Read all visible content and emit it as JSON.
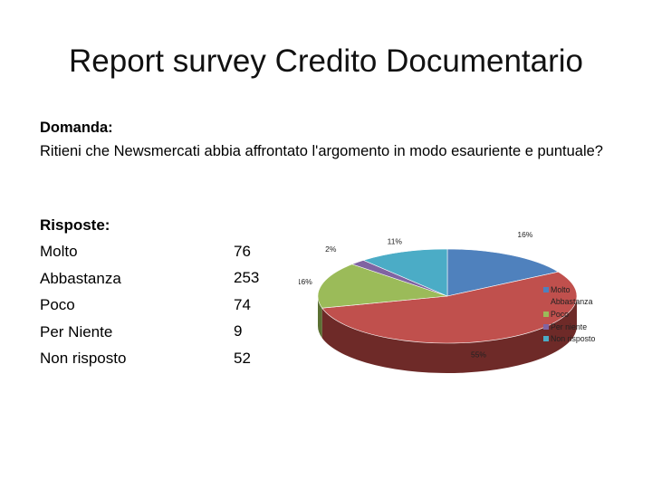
{
  "title": "Report survey Credito Documentario",
  "question": {
    "label": "Domanda:",
    "text": "Ritieni che Newsmercati abbia affrontato l'argomento in modo esauriente e puntuale?"
  },
  "answers": {
    "heading": "Risposte:",
    "items": [
      {
        "label": "Molto",
        "value": "76"
      },
      {
        "label": "Abbastanza",
        "value": "253"
      },
      {
        "label": "Poco",
        "value": "74"
      },
      {
        "label": "Per Niente",
        "value": "9"
      },
      {
        "label": "Non risposto",
        "value": "52"
      }
    ]
  },
  "chart_data": {
    "type": "pie",
    "style": "3d",
    "categories": [
      "Molto",
      "Abbastanza",
      "Poco",
      "Per niente",
      "Non risposto"
    ],
    "values": [
      76,
      253,
      74,
      9,
      52
    ],
    "data_labels": [
      "16%",
      "55%",
      "16%",
      "2%",
      "11%"
    ],
    "colors": [
      "#4f81bd",
      "#c0504d",
      "#9bbb59",
      "#8064a2",
      "#4bacc6"
    ],
    "side_colors": [
      "#2f4e73",
      "#6e2a28",
      "#5b7033",
      "#4b3a61",
      "#2b6877"
    ],
    "legend": [
      "Molto",
      "Abbastanza",
      "Poco",
      "Per niente",
      "Non risposto"
    ],
    "legend_position": "right"
  }
}
